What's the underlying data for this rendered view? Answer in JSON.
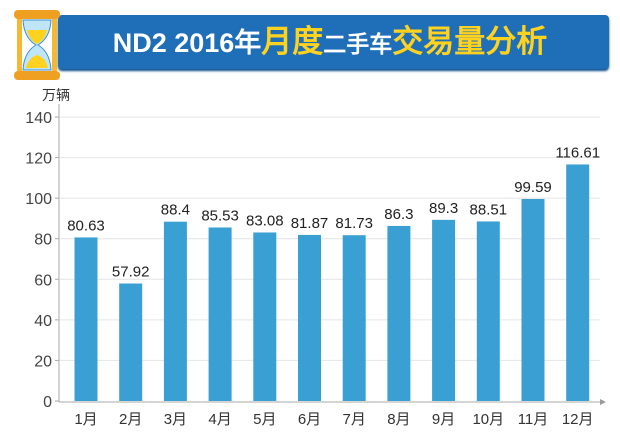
{
  "header": {
    "title_parts": [
      {
        "text": "ND2 2016年",
        "color": "white"
      },
      {
        "text": "月度",
        "color": "yellow"
      },
      {
        "text": "二手车",
        "color": "white"
      },
      {
        "text": "交易量分析",
        "color": "yellow"
      }
    ],
    "icon": "hourglass-icon"
  },
  "chart_data": {
    "type": "bar",
    "title": "ND2 2016年月度二手车交易量分析",
    "ylabel": "万辆",
    "xlabel": "",
    "categories": [
      "1月",
      "2月",
      "3月",
      "4月",
      "5月",
      "6月",
      "7月",
      "8月",
      "9月",
      "10月",
      "11月",
      "12月"
    ],
    "values": [
      80.63,
      57.92,
      88.4,
      85.53,
      83.08,
      81.87,
      81.73,
      86.3,
      89.3,
      88.51,
      99.59,
      116.61
    ],
    "value_labels": [
      "80.63",
      "57.92",
      "88.4",
      "85.53",
      "83.08",
      "81.87",
      "81.73",
      "86.3",
      "89.3",
      "88.51",
      "99.59",
      "116.61"
    ],
    "ylim": [
      0,
      140
    ],
    "yticks": [
      0,
      20,
      40,
      60,
      80,
      100,
      120,
      140
    ],
    "grid": true,
    "bar_color": "#3a9fd2"
  }
}
